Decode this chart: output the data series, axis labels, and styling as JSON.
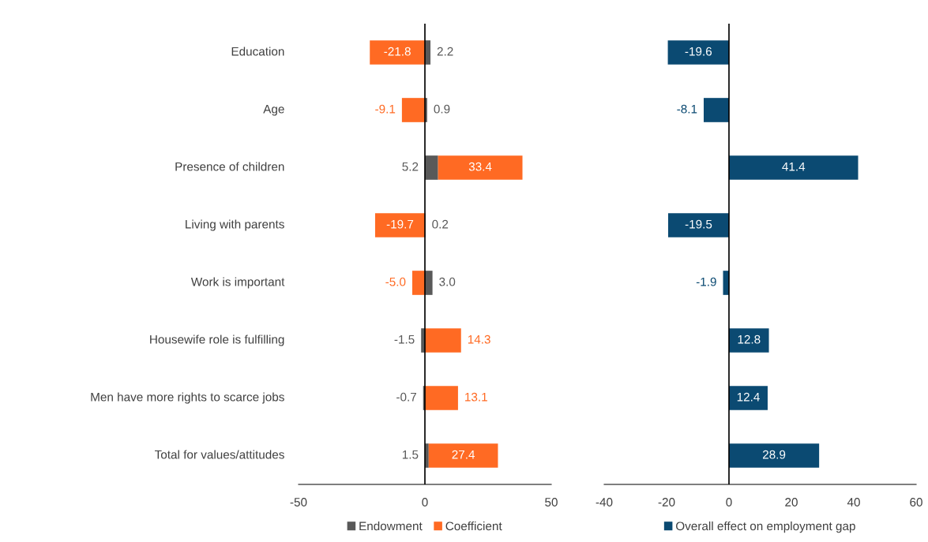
{
  "chart_data": [
    {
      "type": "bar",
      "orientation": "horizontal",
      "stacked": true,
      "legend": "bottom",
      "categories": [
        "Education",
        "Age",
        "Presence of children",
        "Living with parents",
        "Work is important",
        "Housewife role is fulfilling",
        "Men have more rights to scarce jobs",
        "Total for values/attitudes"
      ],
      "series": [
        {
          "name": "Endowment",
          "color": "#595959",
          "values": [
            2.2,
            0.9,
            5.2,
            0.2,
            3.0,
            -1.5,
            -0.7,
            1.5
          ],
          "value_labels": [
            "2.2",
            "0.9",
            "5.2",
            "0.2",
            "3.0",
            "-1.5",
            "-0.7",
            "1.5"
          ]
        },
        {
          "name": "Coefficient",
          "color": "#ff6a23",
          "values": [
            -21.8,
            -9.1,
            33.4,
            -19.7,
            -5.0,
            14.3,
            13.1,
            27.4
          ],
          "value_labels": [
            "-21.8",
            "-9.1",
            "33.4",
            "-19.7",
            "-5.0",
            "14.3",
            "13.1",
            "27.4"
          ]
        }
      ],
      "ref_lines": [
        {
          "axis": "x",
          "value": 0,
          "color": "#000000"
        }
      ],
      "xlim": [
        -50,
        50
      ],
      "xticks": [
        -50,
        0,
        50
      ]
    },
    {
      "type": "bar",
      "orientation": "horizontal",
      "legend": "bottom",
      "tick_labels": "x",
      "categories": [
        null,
        null,
        null,
        null,
        null,
        null,
        null,
        null
      ],
      "series": [
        {
          "name": "Overall effect on employment gap",
          "color": "#0b4a72",
          "values": [
            -19.6,
            -8.1,
            41.4,
            -19.5,
            -1.9,
            12.8,
            12.4,
            28.9
          ],
          "value_labels": [
            "-19.6",
            "-8.1",
            "41.4",
            "-19.5",
            "-1.9",
            "12.8",
            "12.4",
            "28.9"
          ]
        }
      ],
      "ref_lines": [
        {
          "axis": "x",
          "value": 0,
          "color": "#000000"
        }
      ],
      "xlim": [
        -40,
        60
      ],
      "xticks": [
        -40,
        -20,
        0,
        20,
        40,
        60
      ]
    }
  ]
}
